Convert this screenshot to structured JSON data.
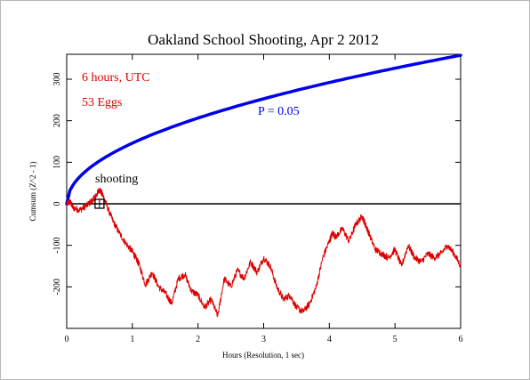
{
  "chart_data": {
    "type": "line",
    "title": "Oakland School Shooting, Apr 2 2012",
    "xlabel": "Hours (Resolution, 1 sec)",
    "ylabel": "Cumsum (Z^2 - 1)",
    "xlim": [
      0,
      6
    ],
    "ylim": [
      -300,
      360
    ],
    "x_ticks": [
      0,
      1,
      2,
      3,
      4,
      5,
      6
    ],
    "y_ticks": [
      -200,
      -100,
      0,
      100,
      200,
      300
    ],
    "grid": false,
    "zero_line": true,
    "annotations": {
      "duration": "6 hours, UTC",
      "eggs": "53 Eggs",
      "probability_label": "P = 0.05",
      "event_label": "shooting",
      "event_hour": 0.5
    },
    "series": [
      {
        "color": "#0000ee",
        "style": "p05-envelope",
        "x": [
          0,
          0.1,
          0.25,
          0.5,
          0.75,
          1,
          1.5,
          2,
          2.5,
          3,
          3.5,
          4,
          4.5,
          5,
          5.5,
          6
        ],
        "values": [
          0,
          46,
          73,
          103,
          127,
          146,
          179,
          207,
          231,
          253,
          274,
          292,
          310,
          327,
          343,
          358
        ]
      },
      {
        "color": "#dd0000",
        "x": [
          0,
          0.05,
          0.1,
          0.2,
          0.3,
          0.4,
          0.45,
          0.5,
          0.55,
          0.6,
          0.7,
          0.8,
          0.9,
          1.0,
          1.05,
          1.1,
          1.2,
          1.3,
          1.4,
          1.5,
          1.6,
          1.7,
          1.8,
          1.9,
          2.0,
          2.1,
          2.2,
          2.3,
          2.4,
          2.5,
          2.6,
          2.7,
          2.8,
          2.9,
          3.0,
          3.1,
          3.2,
          3.3,
          3.4,
          3.5,
          3.6,
          3.7,
          3.8,
          3.9,
          4.0,
          4.05,
          4.1,
          4.2,
          4.3,
          4.4,
          4.5,
          4.55,
          4.6,
          4.7,
          4.8,
          4.9,
          5.0,
          5.1,
          5.2,
          5.3,
          5.4,
          5.5,
          5.6,
          5.7,
          5.8,
          5.9,
          6.0
        ],
        "values": [
          0,
          5,
          -10,
          -15,
          -5,
          10,
          20,
          35,
          20,
          0,
          -40,
          -70,
          -95,
          -115,
          -130,
          -145,
          -195,
          -165,
          -200,
          -215,
          -240,
          -180,
          -170,
          -210,
          -220,
          -250,
          -230,
          -270,
          -180,
          -200,
          -160,
          -180,
          -140,
          -165,
          -130,
          -150,
          -200,
          -230,
          -220,
          -250,
          -260,
          -240,
          -200,
          -130,
          -90,
          -70,
          -80,
          -60,
          -90,
          -50,
          -30,
          -50,
          -70,
          -110,
          -120,
          -130,
          -110,
          -150,
          -100,
          -130,
          -140,
          -120,
          -130,
          -120,
          -100,
          -120,
          -150
        ]
      }
    ]
  }
}
